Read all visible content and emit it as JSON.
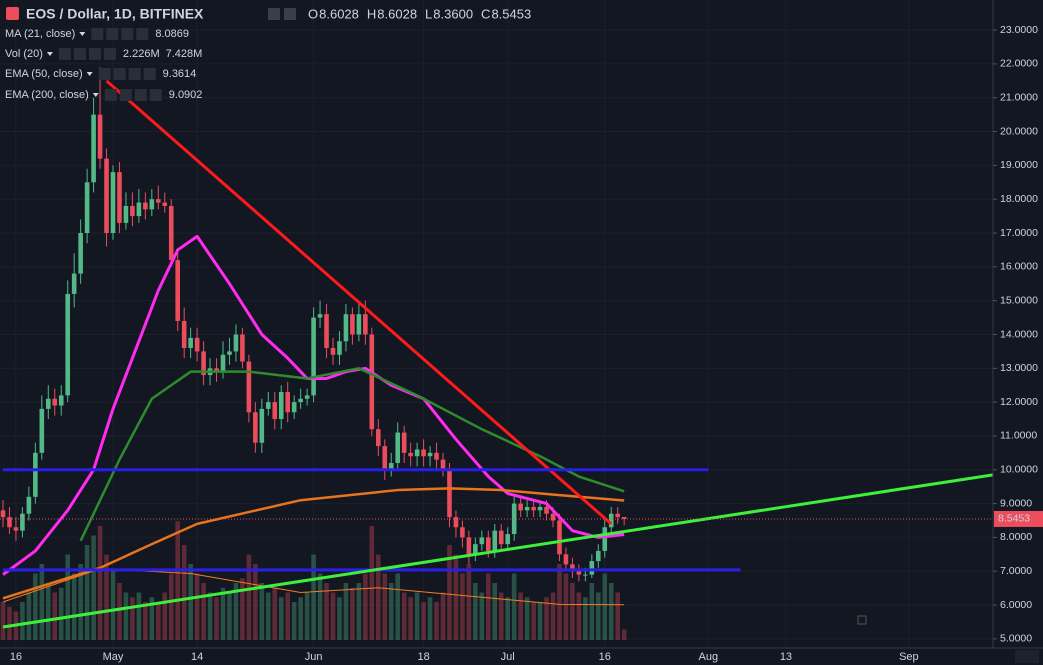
{
  "header": {
    "title": "EOS / Dollar, 1D, BITFINEX",
    "ohlc": [
      {
        "label": "O",
        "value": "8.6028"
      },
      {
        "label": "H",
        "value": "8.6028"
      },
      {
        "label": "L",
        "value": "8.3600"
      },
      {
        "label": "C",
        "value": "8.5453"
      }
    ]
  },
  "chart_data": {
    "type": "candlestick",
    "xlim": [
      0,
      153
    ],
    "ylim": [
      4.73,
      23.89
    ],
    "xticks": [
      {
        "value": 2,
        "label": "16"
      },
      {
        "value": 17,
        "label": "May"
      },
      {
        "value": 30,
        "label": "14"
      },
      {
        "value": 48,
        "label": "Jun"
      },
      {
        "value": 65,
        "label": "18"
      },
      {
        "value": 78,
        "label": "Jul"
      },
      {
        "value": 93,
        "label": "16"
      },
      {
        "value": 109,
        "label": "Aug"
      },
      {
        "value": 121,
        "label": "13"
      },
      {
        "value": 140,
        "label": "Sep"
      }
    ],
    "yticks": [
      {
        "value": 5,
        "label": "5.0000"
      },
      {
        "value": 6,
        "label": "6.0000"
      },
      {
        "value": 7,
        "label": "7.0000"
      },
      {
        "value": 8,
        "label": "8.0000"
      },
      {
        "value": 9,
        "label": "9.0000"
      },
      {
        "value": 10,
        "label": "10.0000"
      },
      {
        "value": 11,
        "label": "11.0000"
      },
      {
        "value": 12,
        "label": "12.0000"
      },
      {
        "value": 13,
        "label": "13.0000"
      },
      {
        "value": 14,
        "label": "14.0000"
      },
      {
        "value": 15,
        "label": "15.0000"
      },
      {
        "value": 16,
        "label": "16.0000"
      },
      {
        "value": 17,
        "label": "17.0000"
      },
      {
        "value": 18,
        "label": "18.0000"
      },
      {
        "value": 19,
        "label": "19.0000"
      },
      {
        "value": 20,
        "label": "20.0000"
      },
      {
        "value": 21,
        "label": "21.0000"
      },
      {
        "value": 22,
        "label": "22.0000"
      },
      {
        "value": 23,
        "label": "23.0000"
      }
    ],
    "grid": true,
    "up_color": "#53b987",
    "down_color": "#eb4d5c",
    "x": [
      0,
      1,
      2,
      3,
      4,
      5,
      6,
      7,
      8,
      9,
      10,
      11,
      12,
      13,
      14,
      15,
      16,
      17,
      18,
      19,
      20,
      21,
      22,
      23,
      24,
      25,
      26,
      27,
      28,
      29,
      30,
      31,
      32,
      33,
      34,
      35,
      36,
      37,
      38,
      39,
      40,
      41,
      42,
      43,
      44,
      45,
      46,
      47,
      48,
      49,
      50,
      51,
      52,
      53,
      54,
      55,
      56,
      57,
      58,
      59,
      60,
      61,
      62,
      63,
      64,
      65,
      66,
      67,
      68,
      69,
      70,
      71,
      72,
      73,
      74,
      75,
      76,
      77,
      78,
      79,
      80,
      81,
      82,
      83,
      84,
      85,
      86,
      87,
      88,
      89,
      90,
      91,
      92,
      93,
      94,
      95,
      96
    ],
    "open": [
      8.8,
      8.6,
      8.3,
      8.2,
      8.7,
      9.2,
      10.5,
      11.8,
      12.1,
      11.9,
      12.2,
      15.2,
      15.8,
      17.0,
      18.5,
      20.5,
      19.2,
      17.0,
      18.8,
      17.3,
      17.8,
      17.5,
      17.9,
      17.7,
      18.0,
      17.9,
      17.8,
      16.2,
      14.4,
      13.6,
      13.9,
      13.5,
      12.8,
      13.0,
      12.9,
      13.4,
      13.5,
      14.0,
      13.2,
      11.7,
      10.8,
      11.8,
      12.0,
      11.5,
      12.3,
      11.7,
      12.0,
      12.1,
      12.2,
      14.5,
      14.6,
      13.6,
      13.4,
      13.8,
      14.6,
      14.0,
      14.6,
      14.0,
      11.2,
      10.7,
      10.0,
      10.2,
      11.1,
      10.5,
      10.4,
      10.6,
      10.4,
      10.5,
      10.3,
      10.0,
      8.6,
      8.3,
      8.0,
      7.5,
      7.8,
      8.0,
      7.6,
      8.2,
      7.8,
      8.1,
      9.0,
      8.8,
      8.9,
      8.8,
      8.9,
      8.7,
      8.5,
      7.5,
      7.2,
      7.0,
      6.9,
      6.9,
      7.3,
      7.6,
      8.3,
      8.7,
      8.6028
    ],
    "high": [
      9.1,
      8.9,
      8.6,
      8.9,
      9.5,
      10.8,
      12.2,
      12.5,
      12.4,
      12.5,
      15.6,
      16.4,
      17.4,
      18.9,
      21.0,
      21.9,
      19.5,
      19.0,
      19.1,
      18.2,
      18.2,
      18.3,
      18.2,
      18.3,
      18.4,
      18.2,
      18.0,
      16.5,
      14.8,
      14.2,
      14.2,
      13.8,
      13.3,
      13.3,
      13.8,
      13.9,
      14.3,
      14.2,
      13.4,
      12.0,
      12.1,
      12.3,
      12.3,
      12.5,
      12.6,
      12.2,
      12.4,
      12.4,
      14.8,
      15.0,
      14.9,
      13.9,
      14.1,
      14.9,
      14.8,
      14.9,
      15.0,
      14.2,
      11.5,
      10.9,
      10.5,
      11.4,
      11.3,
      10.8,
      10.8,
      10.9,
      10.7,
      10.8,
      10.5,
      10.2,
      8.8,
      8.5,
      8.2,
      8.0,
      8.2,
      8.2,
      8.4,
      8.4,
      8.3,
      9.2,
      9.2,
      9.1,
      9.1,
      9.1,
      9.1,
      8.9,
      8.7,
      7.7,
      7.4,
      7.2,
      7.1,
      7.5,
      7.8,
      8.6,
      8.9,
      8.9,
      8.6028
    ],
    "low": [
      8.3,
      8.1,
      7.9,
      8.0,
      8.5,
      9.0,
      10.3,
      11.5,
      11.6,
      11.6,
      12.0,
      14.8,
      15.5,
      16.7,
      18.2,
      18.9,
      16.6,
      16.8,
      17.0,
      17.1,
      17.2,
      17.3,
      17.4,
      17.5,
      17.7,
      17.6,
      16.0,
      14.1,
      13.3,
      13.3,
      13.2,
      12.5,
      12.5,
      12.6,
      12.7,
      13.1,
      13.2,
      13.0,
      11.4,
      10.5,
      10.5,
      11.6,
      11.2,
      11.2,
      11.4,
      11.5,
      11.8,
      11.9,
      12.0,
      14.2,
      13.3,
      13.1,
      13.1,
      13.5,
      13.7,
      13.8,
      13.7,
      11.0,
      10.4,
      9.7,
      9.8,
      10.0,
      10.2,
      10.1,
      10.1,
      10.1,
      10.1,
      10.0,
      9.8,
      8.3,
      8.0,
      7.7,
      7.2,
      7.3,
      7.6,
      7.4,
      7.4,
      7.6,
      7.6,
      7.9,
      8.6,
      8.6,
      8.6,
      8.6,
      8.5,
      8.3,
      7.3,
      7.0,
      6.8,
      6.7,
      6.7,
      6.8,
      7.1,
      7.4,
      8.1,
      8.4,
      8.36
    ],
    "close": [
      8.6,
      8.3,
      8.2,
      8.7,
      9.2,
      10.5,
      11.8,
      12.1,
      11.9,
      12.2,
      15.2,
      15.8,
      17.0,
      18.5,
      20.5,
      19.2,
      17.0,
      18.8,
      17.3,
      17.8,
      17.5,
      17.9,
      17.7,
      18.0,
      17.9,
      17.8,
      16.2,
      14.4,
      13.6,
      13.9,
      13.5,
      12.8,
      13.0,
      12.9,
      13.4,
      13.5,
      14.0,
      13.2,
      11.7,
      10.8,
      11.8,
      12.0,
      11.5,
      12.3,
      11.7,
      12.0,
      12.1,
      12.2,
      14.5,
      14.6,
      13.6,
      13.4,
      13.8,
      14.6,
      14.0,
      14.6,
      14.0,
      11.2,
      10.7,
      10.0,
      10.2,
      11.1,
      10.5,
      10.4,
      10.6,
      10.4,
      10.5,
      10.3,
      10.0,
      8.6,
      8.3,
      8.0,
      7.5,
      7.8,
      8.0,
      7.6,
      8.2,
      7.8,
      8.1,
      9.0,
      8.8,
      8.9,
      8.8,
      8.9,
      8.7,
      8.5,
      7.5,
      7.2,
      7.0,
      6.9,
      6.9,
      7.3,
      7.6,
      8.3,
      8.7,
      8.6,
      8.5453
    ],
    "last_price": 8.5453,
    "last_price_label": "8.5453",
    "volume_name": "Vol (20)",
    "volume_value_labels": [
      "2.226M",
      "7.428M"
    ],
    "volume_ylim": [
      0,
      40
    ],
    "volume": [
      8,
      7,
      6,
      8,
      10,
      14,
      16,
      12,
      10,
      11,
      18,
      14,
      16,
      20,
      22,
      24,
      18,
      15,
      12,
      10,
      9,
      10,
      8,
      9,
      8,
      10,
      14,
      25,
      20,
      16,
      14,
      12,
      10,
      9,
      11,
      10,
      12,
      13,
      18,
      16,
      12,
      10,
      11,
      9,
      10,
      8,
      9,
      10,
      18,
      14,
      12,
      10,
      9,
      12,
      11,
      12,
      14,
      24,
      18,
      14,
      12,
      14,
      10,
      9,
      10,
      8,
      9,
      8,
      10,
      20,
      18,
      14,
      16,
      12,
      10,
      14,
      12,
      10,
      9,
      14,
      10,
      9,
      8,
      8,
      9,
      10,
      16,
      14,
      12,
      10,
      9,
      12,
      10,
      14,
      12,
      10,
      2.226
    ],
    "volume_ma": {
      "color": "#f57c20",
      "x": [
        0,
        15,
        29,
        46,
        58,
        74,
        86,
        96
      ],
      "values": [
        8,
        15,
        14,
        10,
        11,
        9,
        7.5,
        7.428
      ]
    },
    "series": [
      {
        "name": "MA (21, close)",
        "color": "#ff2bf0",
        "value_label": "8.0869",
        "x": [
          0,
          5,
          10,
          14,
          17,
          20,
          24,
          27,
          30,
          35,
          40,
          44,
          47,
          50,
          53,
          56,
          60,
          65,
          70,
          75,
          78,
          84,
          88,
          92,
          96
        ],
        "values": [
          6.9,
          7.6,
          8.8,
          10.0,
          11.8,
          13.3,
          15.3,
          16.5,
          16.9,
          15.5,
          14.0,
          13.3,
          12.7,
          12.7,
          12.9,
          13.0,
          12.5,
          12.1,
          10.9,
          9.8,
          9.3,
          9.0,
          8.2,
          8.0,
          8.0869
        ]
      },
      {
        "name": "EMA (50, close)",
        "color": "#2e8b2e",
        "value_label": "9.3614",
        "x": [
          12,
          18,
          23,
          29,
          38,
          47,
          55,
          64,
          74,
          83,
          89,
          96
        ],
        "values": [
          7.9,
          10.3,
          12.1,
          12.9,
          12.9,
          12.7,
          13.0,
          12.2,
          11.2,
          10.4,
          9.8,
          9.3614
        ]
      },
      {
        "name": "EMA (200, close)",
        "color": "#e8741c",
        "value_label": "9.0902",
        "x": [
          0,
          15,
          23,
          30,
          46,
          61,
          69,
          77,
          86,
          96
        ],
        "values": [
          6.2,
          7.1,
          7.8,
          8.4,
          9.1,
          9.4,
          9.45,
          9.4,
          9.25,
          9.0902
        ]
      }
    ],
    "lines": [
      {
        "color": "#ff1a1a",
        "x": [
          16,
          94
        ],
        "values": [
          21.5,
          8.4
        ]
      },
      {
        "color": "#2a1fe8",
        "x": [
          0,
          109
        ],
        "values": [
          10.0,
          10.0
        ]
      },
      {
        "color": "#2a1fe8",
        "x": [
          0,
          114
        ],
        "values": [
          7.04,
          7.04
        ]
      },
      {
        "color": "#3cf03c",
        "x": [
          0,
          153
        ],
        "values": [
          5.35,
          9.85
        ]
      }
    ]
  }
}
